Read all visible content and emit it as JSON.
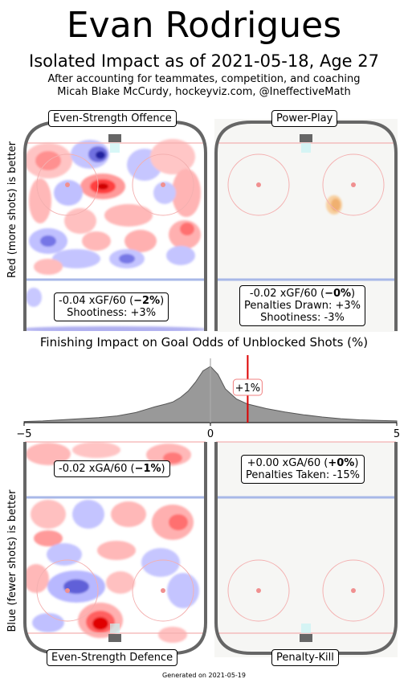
{
  "header": {
    "title": "Evan Rodrigues",
    "subtitle": "Isolated Impact as of 2021-05-18, Age 27",
    "credit_line1": "After accounting for teammates, competition, and coaching",
    "credit_line2": "Micah Blake McCurdy, hockeyviz.com, @IneffectiveMath"
  },
  "axis_labels": {
    "top": "Red (more shots) is better",
    "bottom": "Blue (fewer shots) is better"
  },
  "panels": {
    "ev_offence": {
      "label": "Even-Strength Offence",
      "stat_prefix": "-0.04 xGF/60 (",
      "stat_bold": "−2%",
      "stat_suffix": ")",
      "line2": "Shootiness: +3%"
    },
    "power_play": {
      "label": "Power-Play",
      "stat_prefix": "-0.02 xGF/60 (",
      "stat_bold": "−0%",
      "stat_suffix": ")",
      "line2": "Penalties Drawn: +3%",
      "line3": "Shootiness: -3%"
    },
    "ev_defence": {
      "label": "Even-Strength Defence",
      "stat_prefix": "-0.02 xGA/60 (",
      "stat_bold": "−1%",
      "stat_suffix": ")"
    },
    "penalty_kill": {
      "label": "Penalty-Kill",
      "stat_prefix": "+0.00 xGA/60 (",
      "stat_bold": "+0%",
      "stat_suffix": ")",
      "line2": "Penalties Taken: -15%"
    }
  },
  "chart_data": {
    "type": "area",
    "title": "Finishing Impact on Goal Odds of Unblocked Shots (%)",
    "xlim": [
      -5,
      5
    ],
    "x_ticks": [
      "−5",
      "0",
      "5"
    ],
    "marker_value": 1,
    "marker_label": "+1%",
    "density": {
      "x": [
        -5,
        -4.5,
        -4,
        -3.5,
        -3,
        -2.5,
        -2,
        -1.7,
        -1.5,
        -1.2,
        -1,
        -0.8,
        -0.6,
        -0.4,
        -0.2,
        0,
        0.2,
        0.4,
        0.7,
        1,
        1.5,
        2,
        2.5,
        3,
        3.5,
        4,
        4.5,
        5
      ],
      "y": [
        0.02,
        0.03,
        0.05,
        0.07,
        0.09,
        0.12,
        0.18,
        0.24,
        0.28,
        0.33,
        0.37,
        0.45,
        0.56,
        0.72,
        0.92,
        1.0,
        0.86,
        0.6,
        0.42,
        0.33,
        0.25,
        0.19,
        0.14,
        0.1,
        0.07,
        0.05,
        0.04,
        0.03
      ]
    },
    "colors": {
      "density_fill": "#999999",
      "density_line": "#555555",
      "marker": "#dd0000",
      "zero_line": "#aaaaaa"
    }
  },
  "footer": "Generated on 2021-05-19"
}
